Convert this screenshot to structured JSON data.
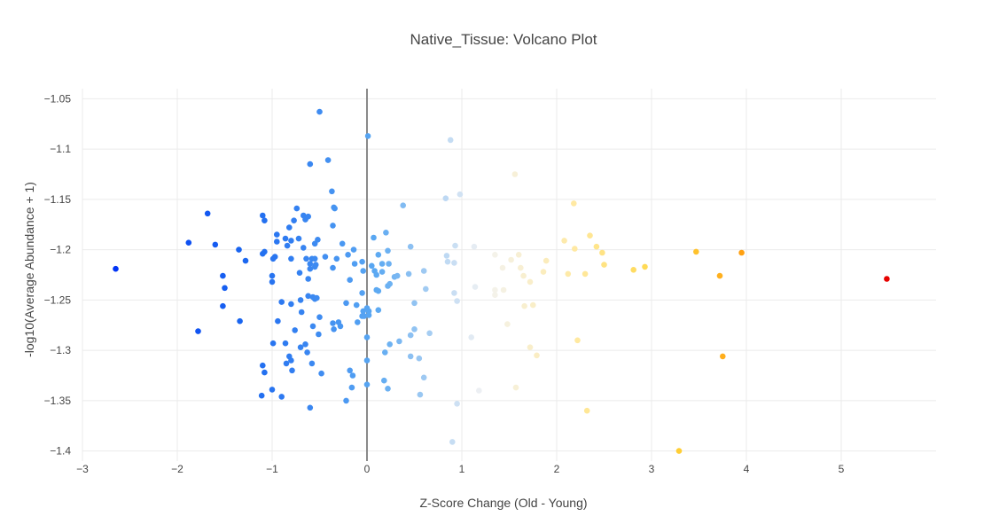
{
  "chart_data": {
    "type": "scatter",
    "title": "Native_Tissue: Volcano Plot",
    "xlabel": "Z-Score Change (Old - Young)",
    "ylabel": "-log10(Average Abundance + 1)",
    "xlim": [
      -3,
      6
    ],
    "ylim": [
      -1.41,
      -1.04
    ],
    "xticks": [
      -3,
      -2,
      -1,
      0,
      1,
      2,
      3,
      4,
      5
    ],
    "xtick_labels": [
      "−3",
      "−2",
      "−1",
      "0",
      "1",
      "2",
      "3",
      "4",
      "5"
    ],
    "yticks": [
      -1.05,
      -1.1,
      -1.15,
      -1.2,
      -1.25,
      -1.3,
      -1.35,
      -1.4
    ],
    "ytick_labels": [
      "−1.05",
      "−1.1",
      "−1.15",
      "−1.2",
      "−1.25",
      "−1.3",
      "−1.35",
      "−1.4"
    ],
    "grid": true,
    "zero_line_x": 0,
    "color_scale": {
      "cmin": -2.7,
      "cmax": 5.5,
      "stops": [
        [
          0.0,
          "#0032f5"
        ],
        [
          0.17,
          "#1a66f0"
        ],
        [
          0.34,
          "#5aa8f2"
        ],
        [
          0.48,
          "#f3f3f3"
        ],
        [
          0.6,
          "#ffe9a0"
        ],
        [
          0.72,
          "#ffd43a"
        ],
        [
          0.85,
          "#ff8a00"
        ],
        [
          1.0,
          "#e60000"
        ]
      ]
    },
    "points": [
      [
        -2.65,
        -1.219
      ],
      [
        -1.88,
        -1.193
      ],
      [
        -1.68,
        -1.164
      ],
      [
        -1.6,
        -1.195
      ],
      [
        -1.78,
        -1.281
      ],
      [
        -1.52,
        -1.226
      ],
      [
        -1.5,
        -1.238
      ],
      [
        -1.52,
        -1.256
      ],
      [
        -1.35,
        -1.2
      ],
      [
        -1.28,
        -1.211
      ],
      [
        -1.34,
        -1.271
      ],
      [
        -1.1,
        -1.166
      ],
      [
        -1.08,
        -1.171
      ],
      [
        -1.1,
        -1.204
      ],
      [
        -1.08,
        -1.202
      ],
      [
        -1.1,
        -1.315
      ],
      [
        -1.08,
        -1.322
      ],
      [
        -1.11,
        -1.345
      ],
      [
        -1.0,
        -1.232
      ],
      [
        -1.0,
        -1.226
      ],
      [
        -0.99,
        -1.293
      ],
      [
        -1.0,
        -1.339
      ],
      [
        -0.95,
        -1.185
      ],
      [
        -0.95,
        -1.192
      ],
      [
        -0.97,
        -1.207
      ],
      [
        -0.99,
        -1.209
      ],
      [
        -0.94,
        -1.271
      ],
      [
        -0.9,
        -1.252
      ],
      [
        -0.9,
        -1.346
      ],
      [
        -0.86,
        -1.189
      ],
      [
        -0.84,
        -1.196
      ],
      [
        -0.86,
        -1.293
      ],
      [
        -0.85,
        -1.313
      ],
      [
        -0.82,
        -1.178
      ],
      [
        -0.8,
        -1.209
      ],
      [
        -0.82,
        -1.306
      ],
      [
        -0.8,
        -1.31
      ],
      [
        -0.79,
        -1.32
      ],
      [
        -0.77,
        -1.171
      ],
      [
        -0.8,
        -1.191
      ],
      [
        -0.8,
        -1.254
      ],
      [
        -0.76,
        -1.28
      ],
      [
        -0.74,
        -1.159
      ],
      [
        -0.72,
        -1.189
      ],
      [
        -0.71,
        -1.223
      ],
      [
        -0.7,
        -1.25
      ],
      [
        -0.69,
        -1.262
      ],
      [
        -0.7,
        -1.297
      ],
      [
        -0.67,
        -1.166
      ],
      [
        -0.65,
        -1.17
      ],
      [
        -0.67,
        -1.198
      ],
      [
        -0.64,
        -1.209
      ],
      [
        -0.65,
        -1.294
      ],
      [
        -0.63,
        -1.302
      ],
      [
        -0.62,
        -1.167
      ],
      [
        -0.6,
        -1.115
      ],
      [
        -0.6,
        -1.357
      ],
      [
        -0.62,
        -1.246
      ],
      [
        -0.6,
        -1.214
      ],
      [
        -0.58,
        -1.209
      ],
      [
        -0.6,
        -1.219
      ],
      [
        -0.62,
        -1.229
      ],
      [
        -0.57,
        -1.276
      ],
      [
        -0.58,
        -1.313
      ],
      [
        -0.55,
        -1.209
      ],
      [
        -0.55,
        -1.217
      ],
      [
        -0.55,
        -1.194
      ],
      [
        -0.57,
        -1.247
      ],
      [
        -0.55,
        -1.249
      ],
      [
        -0.54,
        -1.215
      ],
      [
        -0.53,
        -1.248
      ],
      [
        -0.52,
        -1.19
      ],
      [
        -0.5,
        -1.063
      ],
      [
        -0.5,
        -1.267
      ],
      [
        -0.51,
        -1.284
      ],
      [
        -0.48,
        -1.323
      ],
      [
        -0.44,
        -1.207
      ],
      [
        -0.41,
        -1.111
      ],
      [
        -0.37,
        -1.142
      ],
      [
        -0.35,
        -1.158
      ],
      [
        -0.34,
        -1.159
      ],
      [
        -0.36,
        -1.176
      ],
      [
        -0.36,
        -1.218
      ],
      [
        -0.36,
        -1.273
      ],
      [
        -0.35,
        -1.279
      ],
      [
        -0.32,
        -1.209
      ],
      [
        -0.3,
        -1.272
      ],
      [
        -0.28,
        -1.276
      ],
      [
        -0.26,
        -1.194
      ],
      [
        -0.22,
        -1.35
      ],
      [
        -0.22,
        -1.253
      ],
      [
        -0.18,
        -1.23
      ],
      [
        -0.2,
        -1.205
      ],
      [
        -0.14,
        -1.2
      ],
      [
        -0.18,
        -1.32
      ],
      [
        -0.15,
        -1.325
      ],
      [
        -0.16,
        -1.337
      ],
      [
        -0.13,
        -1.214
      ],
      [
        -0.11,
        -1.255
      ],
      [
        -0.1,
        -1.272
      ],
      [
        -0.05,
        -1.212
      ],
      [
        -0.04,
        -1.221
      ],
      [
        -0.05,
        -1.243
      ],
      [
        -0.04,
        -1.261
      ],
      [
        -0.05,
        -1.266
      ],
      [
        -0.03,
        -1.266
      ],
      [
        0.01,
        -1.087
      ],
      [
        0.0,
        -1.287
      ],
      [
        0.0,
        -1.31
      ],
      [
        0.0,
        -1.334
      ],
      [
        0.0,
        -1.258
      ],
      [
        0.02,
        -1.265
      ],
      [
        0.02,
        -1.261
      ],
      [
        0.05,
        -1.216
      ],
      [
        0.07,
        -1.188
      ],
      [
        0.08,
        -1.221
      ],
      [
        0.1,
        -1.225
      ],
      [
        0.1,
        -1.24
      ],
      [
        0.12,
        -1.241
      ],
      [
        0.12,
        -1.26
      ],
      [
        0.12,
        -1.205
      ],
      [
        0.16,
        -1.214
      ],
      [
        0.16,
        -1.222
      ],
      [
        0.18,
        -1.33
      ],
      [
        0.19,
        -1.302
      ],
      [
        0.2,
        -1.183
      ],
      [
        0.22,
        -1.201
      ],
      [
        0.23,
        -1.214
      ],
      [
        0.24,
        -1.234
      ],
      [
        0.22,
        -1.236
      ],
      [
        0.22,
        -1.338
      ],
      [
        0.24,
        -1.294
      ],
      [
        0.29,
        -1.227
      ],
      [
        0.32,
        -1.226
      ],
      [
        0.34,
        -1.291
      ],
      [
        0.38,
        -1.156
      ],
      [
        0.44,
        -1.224
      ],
      [
        0.46,
        -1.197
      ],
      [
        0.46,
        -1.306
      ],
      [
        0.46,
        -1.285
      ],
      [
        0.5,
        -1.279
      ],
      [
        0.5,
        -1.253
      ],
      [
        0.55,
        -1.308
      ],
      [
        0.56,
        -1.344
      ],
      [
        0.6,
        -1.327
      ],
      [
        0.6,
        -1.221
      ],
      [
        0.62,
        -1.239
      ],
      [
        0.66,
        -1.283
      ],
      [
        0.83,
        -1.149
      ],
      [
        0.84,
        -1.206
      ],
      [
        0.85,
        -1.212
      ],
      [
        0.88,
        -1.091
      ],
      [
        0.9,
        -1.391
      ],
      [
        0.92,
        -1.213
      ],
      [
        0.93,
        -1.196
      ],
      [
        0.92,
        -1.243
      ],
      [
        0.95,
        -1.251
      ],
      [
        0.95,
        -1.353
      ],
      [
        0.98,
        -1.145
      ],
      [
        1.1,
        -1.287
      ],
      [
        1.13,
        -1.197
      ],
      [
        1.14,
        -1.237
      ],
      [
        1.18,
        -1.34
      ],
      [
        1.35,
        -1.205
      ],
      [
        1.35,
        -1.245
      ],
      [
        1.35,
        -1.24
      ],
      [
        1.43,
        -1.218
      ],
      [
        1.44,
        -1.24
      ],
      [
        1.48,
        -1.274
      ],
      [
        1.52,
        -1.21
      ],
      [
        1.56,
        -1.125
      ],
      [
        1.57,
        -1.337
      ],
      [
        1.6,
        -1.205
      ],
      [
        1.62,
        -1.218
      ],
      [
        1.65,
        -1.226
      ],
      [
        1.66,
        -1.256
      ],
      [
        1.72,
        -1.232
      ],
      [
        1.72,
        -1.297
      ],
      [
        1.75,
        -1.255
      ],
      [
        1.79,
        -1.305
      ],
      [
        1.86,
        -1.222
      ],
      [
        1.89,
        -1.211
      ],
      [
        2.08,
        -1.191
      ],
      [
        2.12,
        -1.224
      ],
      [
        2.18,
        -1.154
      ],
      [
        2.19,
        -1.199
      ],
      [
        2.22,
        -1.29
      ],
      [
        2.3,
        -1.224
      ],
      [
        2.32,
        -1.36
      ],
      [
        2.35,
        -1.186
      ],
      [
        2.42,
        -1.197
      ],
      [
        2.48,
        -1.203
      ],
      [
        2.5,
        -1.215
      ],
      [
        2.81,
        -1.22
      ],
      [
        2.93,
        -1.217
      ],
      [
        3.29,
        -1.4
      ],
      [
        3.47,
        -1.202
      ],
      [
        3.72,
        -1.226
      ],
      [
        3.75,
        -1.306
      ],
      [
        3.95,
        -1.203
      ],
      [
        5.48,
        -1.229
      ]
    ]
  }
}
